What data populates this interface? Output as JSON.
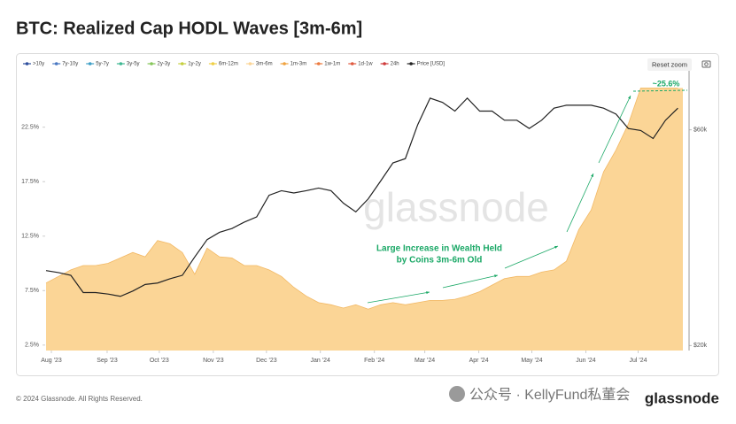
{
  "chart_data": {
    "type": "area",
    "title": "BTC: Realized Cap HODL Waves [3m-6m]",
    "watermark": "glassnode",
    "reset_button": "Reset zoom",
    "footer": "© 2024 Glassnode. All Rights Reserved.",
    "footer_brand": "glassnode",
    "footer_overlay": "公众号 · KellyFund私董会",
    "annotations": [
      "~25.6%",
      "Large Increase in Wealth Held",
      "by Coins 3m-6m Old"
    ],
    "annotation_color": "#1aa866",
    "xlim": [
      0,
      51.4
    ],
    "xticks": [
      {
        "value": 0.43,
        "label": "Aug '23"
      },
      {
        "value": 4.93,
        "label": "Sep '23"
      },
      {
        "value": 9.14,
        "label": "Oct '23"
      },
      {
        "value": 13.5,
        "label": "Nov '23"
      },
      {
        "value": 17.79,
        "label": "Dec '23"
      },
      {
        "value": 22.14,
        "label": "Jan '24"
      },
      {
        "value": 26.5,
        "label": "Feb '24"
      },
      {
        "value": 30.57,
        "label": "Mar '24"
      },
      {
        "value": 34.93,
        "label": "Apr '24"
      },
      {
        "value": 39.21,
        "label": "May '24"
      },
      {
        "value": 43.57,
        "label": "Jun '24"
      },
      {
        "value": 47.79,
        "label": "Jul '24"
      }
    ],
    "ylim": [
      2,
      28
    ],
    "yticks": [
      {
        "value": 2.5,
        "label": "2.5%"
      },
      {
        "value": 7.5,
        "label": "7.5%"
      },
      {
        "value": 12.5,
        "label": "12.5%"
      },
      {
        "value": 17.5,
        "label": "17.5%"
      },
      {
        "value": 22.5,
        "label": "22.5%"
      }
    ],
    "y2lim": [
      19500,
      82500
    ],
    "y2_log": true,
    "y2ticks": [
      {
        "value": 20000,
        "label": "$20k"
      },
      {
        "value": 60000,
        "label": "$60k"
      }
    ],
    "series": [
      {
        "name": ">10y",
        "color": "#2f4f9e"
      },
      {
        "name": "7y-10y",
        "color": "#4a78c2"
      },
      {
        "name": "5y-7y",
        "color": "#3f9fc6"
      },
      {
        "name": "3y-5y",
        "color": "#3fb892"
      },
      {
        "name": "2y-3y",
        "color": "#86c65a"
      },
      {
        "name": "1y-2y",
        "color": "#c5cf3f"
      },
      {
        "name": "6m-12m",
        "color": "#efcf45"
      },
      {
        "name": "3m-6m",
        "color": "#fbd596",
        "values": [
          8.2,
          8.8,
          9.4,
          9.8,
          9.8,
          10,
          10.5,
          11,
          10.6,
          12.1,
          11.8,
          11,
          9,
          11.4,
          10.6,
          10.5,
          9.8,
          9.8,
          9.4,
          8.8,
          7.8,
          7,
          6.4,
          6.2,
          5.9,
          6.2,
          5.8,
          6.2,
          6.4,
          6.2,
          6.4,
          6.6,
          6.6,
          6.7,
          7,
          7.4,
          8,
          8.6,
          8.8,
          8.8,
          9.2,
          9.4,
          10.2,
          13.1,
          14.9,
          18.4,
          20.4,
          22.8,
          26.1,
          26.1,
          26.1,
          26.1
        ]
      },
      {
        "name": "1m-3m",
        "color": "#f0a23f"
      },
      {
        "name": "1w-1m",
        "color": "#ec7b40"
      },
      {
        "name": "1d-1w",
        "color": "#e05a40"
      },
      {
        "name": "24h",
        "color": "#cf3a3a"
      },
      {
        "name": "Price [USD]",
        "color": "#222222",
        "axis": "y2",
        "values": [
          29300,
          29000,
          28600,
          26200,
          26200,
          26000,
          25700,
          26400,
          27300,
          27500,
          28100,
          28600,
          31400,
          34300,
          35600,
          36300,
          37500,
          38500,
          43000,
          44000,
          43500,
          44000,
          44600,
          44000,
          41300,
          39500,
          42200,
          46200,
          50700,
          51800,
          61600,
          70500,
          69000,
          66000,
          70500,
          66000,
          66000,
          63000,
          63000,
          60400,
          63000,
          67000,
          68000,
          68000,
          68000,
          67000,
          65000,
          60400,
          59800,
          57400,
          63000,
          67000
        ]
      }
    ]
  }
}
